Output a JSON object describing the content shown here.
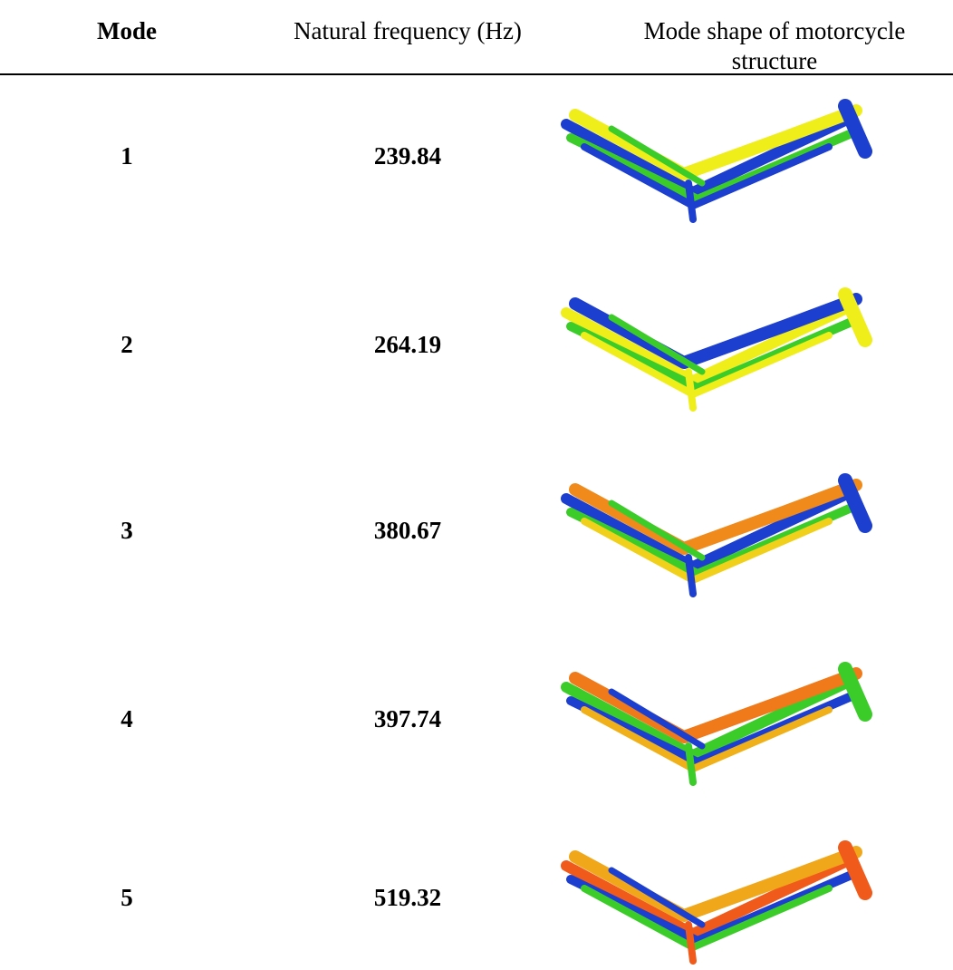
{
  "table": {
    "header": {
      "mode": "Mode",
      "frequency": "Natural frequency (Hz)",
      "shape": "Mode shape of motorcycle structure"
    },
    "rows": [
      {
        "mode": 1,
        "frequency": 239.84
      },
      {
        "mode": 2,
        "frequency": 264.19
      },
      {
        "mode": 3,
        "frequency": 380.67
      },
      {
        "mode": 4,
        "frequency": 397.74
      },
      {
        "mode": 5,
        "frequency": 519.32
      }
    ]
  }
}
